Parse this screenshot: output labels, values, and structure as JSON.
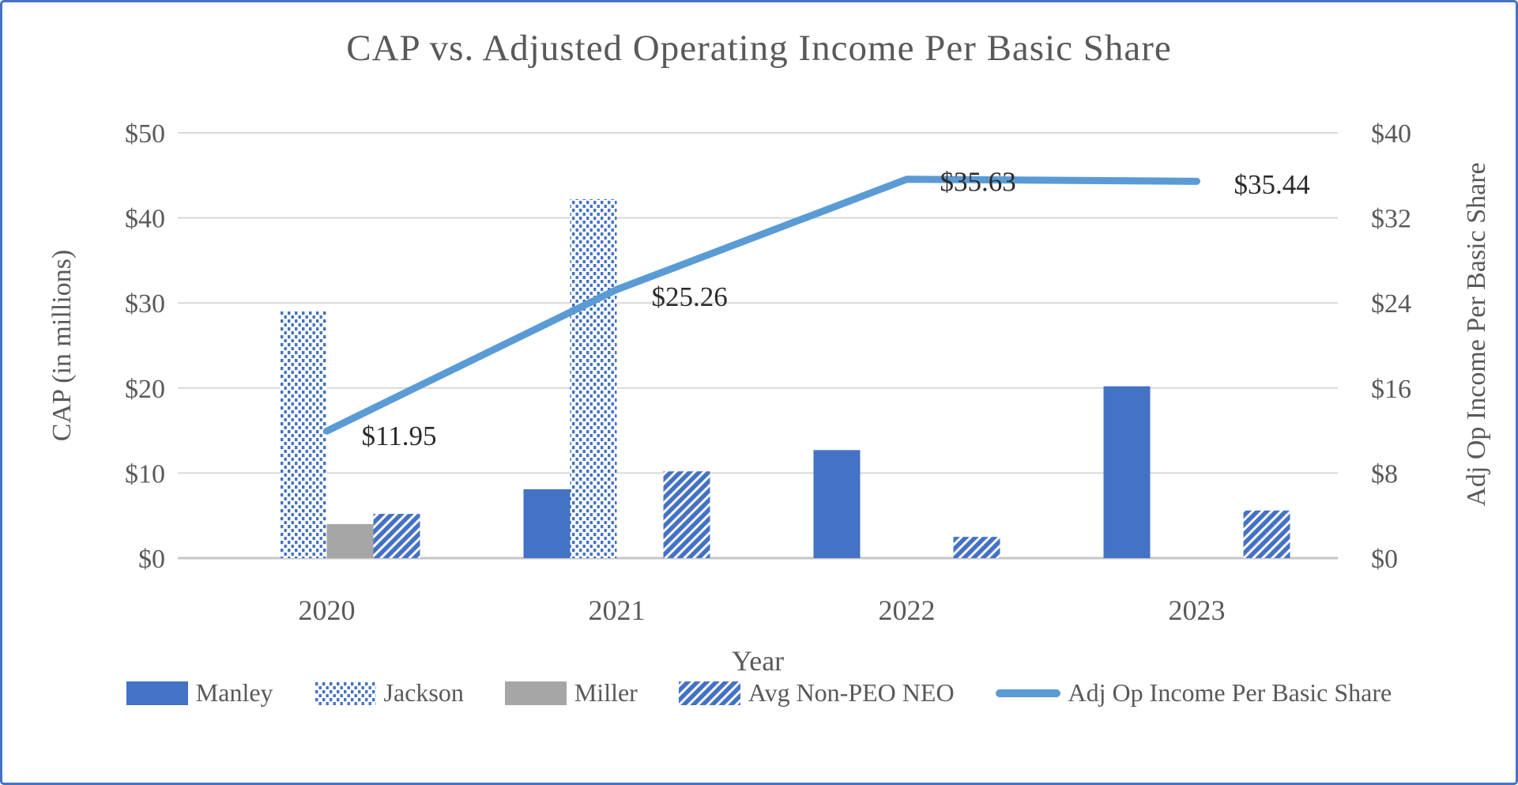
{
  "title": "CAP vs. Adjusted Operating Income Per Basic Share",
  "chart_data": {
    "type": "bar",
    "subtype": "combo-bar-line-dual-axis",
    "categories": [
      "2020",
      "2021",
      "2022",
      "2023"
    ],
    "bar_series": [
      {
        "name": "Manley",
        "style": "solid-blue",
        "values": [
          0,
          8.1,
          12.7,
          20.2
        ]
      },
      {
        "name": "Jackson",
        "style": "dotted-blue",
        "values": [
          29.0,
          42.2,
          0,
          0
        ]
      },
      {
        "name": "Miller",
        "style": "solid-gray",
        "values": [
          4.0,
          0,
          0,
          0
        ]
      },
      {
        "name": "Avg Non-PEO NEO",
        "style": "diagonal-blue",
        "values": [
          5.2,
          10.2,
          2.5,
          5.6
        ]
      }
    ],
    "line_series": {
      "name": "Adj Op Income Per Basic Share",
      "axis": "right",
      "values": [
        11.95,
        25.26,
        35.63,
        35.44
      ],
      "data_labels": [
        "$11.95",
        "$25.26",
        "$35.63",
        "$35.44"
      ]
    },
    "left_axis": {
      "label": "CAP (in millions)",
      "min": 0,
      "max": 50,
      "step": 10,
      "ticks": [
        "$0",
        "$10",
        "$20",
        "$30",
        "$40",
        "$50"
      ]
    },
    "right_axis": {
      "label": "Adj Op Income Per Basic Share",
      "min": 0,
      "max": 40,
      "step": 8,
      "ticks": [
        "$0",
        "$8",
        "$16",
        "$24",
        "$32",
        "$40"
      ]
    },
    "x_axis": {
      "label": "Year"
    },
    "legend": [
      {
        "label": "Manley",
        "swatch": "solid-blue"
      },
      {
        "label": "Jackson",
        "swatch": "dotted-blue"
      },
      {
        "label": "Miller",
        "swatch": "solid-gray"
      },
      {
        "label": "Avg Non-PEO NEO",
        "swatch": "diagonal-blue"
      },
      {
        "label": "Adj Op Income Per Basic Share",
        "swatch": "line"
      }
    ],
    "grid": true,
    "legend_position": "bottom",
    "colors": {
      "bar_blue": "#4472C4",
      "bar_gray": "#A6A6A6",
      "line_blue": "#5B9BD5",
      "gridline": "#D9D9D9",
      "axis_line": "#C6C6C6",
      "axis_text": "#595959",
      "data_label_text": "#2B2B2B",
      "frame_border": "#4472C4"
    }
  }
}
